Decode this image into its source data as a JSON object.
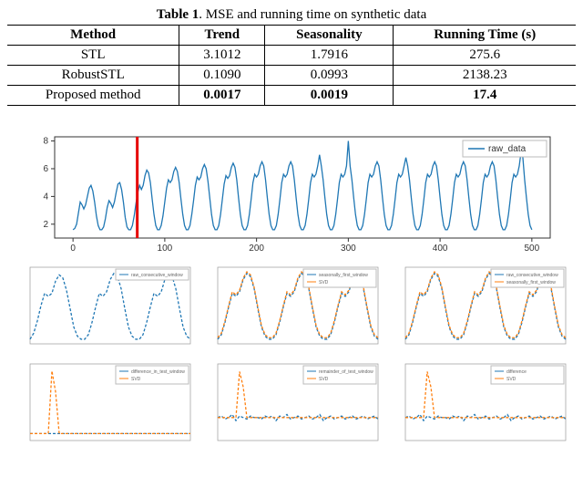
{
  "table": {
    "caption_label": "Table 1",
    "caption_text": ". MSE and running time on synthetic data",
    "columns": [
      "Method",
      "Trend",
      "Seasonality",
      "Running Time (s)"
    ],
    "rows": [
      {
        "cells": [
          "STL",
          "3.1012",
          "1.7916",
          "275.6"
        ],
        "bold": [
          false,
          false,
          false,
          false
        ]
      },
      {
        "cells": [
          "RobustSTL",
          "0.1090",
          "0.0993",
          "2138.23"
        ],
        "bold": [
          false,
          false,
          false,
          false
        ]
      },
      {
        "cells": [
          "Proposed method",
          "0.0017",
          "0.0019",
          "17.4"
        ],
        "bold": [
          false,
          true,
          true,
          true
        ]
      }
    ],
    "col_align": [
      "center",
      "center",
      "center",
      "center"
    ],
    "font_size_pt": 15
  },
  "colors": {
    "series_blue": "#1f77b4",
    "series_orange": "#ff7f0e",
    "vline_red": "#e60000",
    "axis": "#333333",
    "bg": "#ffffff",
    "border": "#bbbbbb"
  },
  "main_chart": {
    "type": "line",
    "legend": "raw_data",
    "xlim": [
      -20,
      520
    ],
    "ylim": [
      1,
      8.3
    ],
    "xticks": [
      0,
      100,
      200,
      300,
      400,
      500
    ],
    "yticks": [
      2,
      4,
      6,
      8
    ],
    "vline_x": 70,
    "vline_color": "#e60000",
    "line_color": "#1f77b4",
    "series": [
      1.6,
      1.7,
      2.0,
      2.8,
      3.6,
      3.4,
      3.1,
      3.4,
      4.0,
      4.6,
      4.8,
      4.4,
      3.6,
      2.6,
      1.9,
      1.6,
      1.6,
      1.8,
      2.4,
      3.2,
      3.7,
      3.5,
      3.2,
      3.6,
      4.3,
      4.9,
      5.0,
      4.5,
      3.6,
      2.5,
      1.8,
      1.6,
      1.6,
      1.9,
      2.6,
      3.5,
      4.3,
      4.8,
      4.5,
      4.8,
      5.5,
      5.9,
      5.7,
      5.0,
      3.8,
      2.7,
      1.9,
      1.6,
      1.6,
      1.9,
      2.6,
      3.6,
      4.6,
      5.2,
      5.0,
      5.2,
      5.8,
      6.1,
      5.8,
      5.0,
      3.8,
      2.7,
      1.9,
      1.6,
      1.6,
      1.9,
      2.7,
      3.7,
      4.8,
      5.4,
      5.2,
      5.4,
      6.0,
      6.3,
      6.0,
      5.1,
      3.9,
      2.7,
      1.9,
      1.6,
      1.6,
      1.9,
      2.7,
      3.8,
      4.9,
      5.5,
      5.3,
      5.5,
      6.1,
      6.4,
      6.1,
      5.2,
      3.9,
      2.7,
      1.9,
      1.6,
      1.6,
      1.9,
      2.7,
      3.8,
      5.0,
      5.6,
      5.4,
      5.6,
      6.2,
      6.5,
      6.2,
      5.2,
      3.9,
      2.7,
      1.9,
      1.6,
      1.6,
      1.9,
      2.7,
      3.8,
      5.0,
      5.6,
      5.4,
      5.6,
      6.2,
      6.5,
      6.2,
      5.2,
      3.9,
      2.7,
      1.9,
      1.6,
      1.6,
      1.9,
      2.7,
      3.8,
      5.0,
      5.6,
      5.4,
      5.6,
      6.2,
      7.0,
      6.2,
      5.2,
      3.9,
      2.7,
      1.9,
      1.6,
      1.6,
      1.9,
      2.7,
      3.8,
      5.0,
      5.6,
      5.4,
      5.6,
      6.2,
      8.0,
      6.2,
      5.2,
      3.9,
      2.7,
      1.9,
      1.6,
      1.6,
      1.9,
      2.7,
      3.8,
      5.0,
      5.6,
      5.4,
      5.6,
      6.2,
      6.5,
      6.2,
      5.2,
      3.9,
      2.7,
      1.9,
      1.6,
      1.6,
      1.9,
      2.7,
      3.8,
      5.0,
      5.6,
      5.4,
      5.6,
      6.2,
      6.8,
      6.2,
      5.2,
      3.9,
      2.7,
      1.9,
      1.6,
      1.6,
      1.9,
      2.7,
      3.8,
      5.0,
      5.6,
      5.4,
      5.6,
      6.2,
      6.5,
      6.2,
      5.2,
      3.9,
      2.7,
      1.9,
      1.6,
      1.6,
      1.9,
      2.7,
      3.8,
      5.0,
      5.6,
      5.4,
      5.6,
      6.2,
      6.5,
      6.2,
      5.2,
      3.9,
      2.7,
      1.9,
      1.6,
      1.6,
      1.9,
      2.7,
      3.8,
      5.0,
      5.6,
      5.4,
      5.6,
      6.2,
      6.5,
      6.2,
      5.2,
      3.9,
      2.7,
      1.9,
      1.6,
      1.6,
      1.9,
      2.7,
      3.8,
      5.0,
      5.6,
      5.4,
      5.6,
      6.2,
      7.2,
      6.8,
      5.2,
      3.9,
      2.7,
      1.9,
      1.6
    ]
  },
  "mini_row1": [
    {
      "type": "line",
      "ylim": [
        1.5,
        6.5
      ],
      "xlim": [
        0,
        80
      ],
      "legend": [
        "raw_consecutive_window"
      ],
      "colors": [
        "#1f77b4"
      ],
      "series": [
        [
          1.8,
          2.2,
          3.0,
          4.0,
          4.8,
          4.6,
          4.8,
          5.6,
          6.0,
          5.8,
          5.0,
          3.8,
          2.6,
          2.0,
          1.8,
          1.8,
          2.1,
          2.9,
          3.9,
          4.8,
          4.6,
          4.9,
          5.7,
          6.1,
          5.9,
          5.1,
          3.8,
          2.6,
          2.0,
          1.8,
          1.8,
          2.1,
          2.9,
          3.9,
          4.8,
          4.6,
          4.9,
          5.7,
          6.1,
          5.9,
          5.1,
          3.8,
          2.6,
          2.0,
          1.8
        ]
      ]
    },
    {
      "type": "line",
      "ylim": [
        1.5,
        6.5
      ],
      "xlim": [
        0,
        80
      ],
      "legend": [
        "seasonally_first_window",
        "SVD"
      ],
      "colors": [
        "#1f77b4",
        "#ff7f0e"
      ],
      "series": [
        [
          1.8,
          2.1,
          2.9,
          3.9,
          4.8,
          4.6,
          4.9,
          5.7,
          6.1,
          5.9,
          5.1,
          3.8,
          2.6,
          2.0,
          1.8,
          1.8,
          2.1,
          2.9,
          3.9,
          4.8,
          4.6,
          4.9,
          5.7,
          6.1,
          5.9,
          5.1,
          3.8,
          2.6,
          2.0,
          1.8,
          1.8,
          2.1,
          2.9,
          3.9,
          4.8,
          4.6,
          4.9,
          5.7,
          6.1,
          5.9,
          5.1,
          3.8,
          2.6,
          2.0,
          1.8
        ],
        [
          1.9,
          2.2,
          3.0,
          4.0,
          4.9,
          4.7,
          5.0,
          5.8,
          6.2,
          6.0,
          5.2,
          3.9,
          2.7,
          2.1,
          1.9,
          1.9,
          2.2,
          3.0,
          4.0,
          4.9,
          4.7,
          5.0,
          5.8,
          6.2,
          6.0,
          5.2,
          3.9,
          2.7,
          2.1,
          1.9,
          1.9,
          2.2,
          3.0,
          4.0,
          4.9,
          4.7,
          5.0,
          5.8,
          6.2,
          6.0,
          5.2,
          3.9,
          2.7,
          2.1,
          1.9
        ]
      ]
    },
    {
      "type": "line",
      "ylim": [
        1.5,
        6.5
      ],
      "xlim": [
        0,
        80
      ],
      "legend": [
        "raw_consecutive_window",
        "seasonally_first_window"
      ],
      "colors": [
        "#1f77b4",
        "#ff7f0e"
      ],
      "series": [
        [
          1.8,
          2.1,
          2.9,
          3.9,
          4.8,
          4.6,
          4.9,
          5.7,
          6.1,
          5.9,
          5.1,
          3.8,
          2.6,
          2.0,
          1.8,
          1.8,
          2.1,
          2.9,
          3.9,
          4.8,
          4.6,
          4.9,
          5.7,
          6.1,
          5.9,
          5.1,
          3.8,
          2.6,
          2.0,
          1.8,
          1.8,
          2.1,
          2.9,
          3.9,
          4.8,
          4.6,
          4.9,
          5.7,
          6.1,
          5.9,
          5.1,
          3.8,
          2.6,
          2.0,
          1.8
        ],
        [
          1.9,
          2.2,
          3.0,
          4.0,
          4.9,
          4.7,
          5.0,
          5.8,
          6.2,
          6.0,
          5.2,
          3.9,
          2.7,
          2.1,
          1.9,
          1.9,
          2.2,
          3.0,
          4.0,
          4.9,
          4.7,
          5.0,
          5.8,
          6.2,
          6.0,
          5.2,
          3.9,
          2.7,
          2.1,
          1.9,
          1.9,
          2.2,
          3.0,
          4.0,
          4.9,
          4.7,
          5.0,
          5.8,
          6.2,
          6.0,
          5.2,
          3.9,
          2.7,
          2.1,
          1.9
        ]
      ]
    }
  ],
  "mini_row2": [
    {
      "type": "line",
      "ylim": [
        -0.5,
        5.0
      ],
      "xlim": [
        0,
        80
      ],
      "legend": [
        "difference_in_test_window",
        "SVD"
      ],
      "colors": [
        "#1f77b4",
        "#ff7f0e"
      ],
      "series": [
        [
          0,
          0,
          0,
          0,
          0,
          0,
          0,
          0,
          0,
          0,
          0,
          0,
          0,
          0,
          0,
          0,
          0,
          0,
          0,
          0,
          0,
          0,
          0,
          0,
          0,
          0,
          0,
          0,
          0,
          0,
          0,
          0,
          0,
          0,
          0,
          0,
          0,
          0,
          0,
          0,
          0,
          0,
          0,
          0,
          0
        ],
        [
          0,
          0,
          0,
          0,
          0,
          0,
          4.5,
          3.0,
          0,
          0,
          0,
          0,
          0,
          0,
          0,
          0,
          0,
          0,
          0,
          0,
          0,
          0,
          0,
          0,
          0,
          0,
          0,
          0,
          0,
          0,
          0,
          0,
          0,
          0,
          0,
          0,
          0,
          0,
          0,
          0,
          0,
          0,
          0,
          0,
          0
        ]
      ]
    },
    {
      "type": "line",
      "ylim": [
        -1.5,
        3.5
      ],
      "xlim": [
        0,
        80
      ],
      "legend": [
        "remainder_of_test_window",
        "SVD"
      ],
      "colors": [
        "#1f77b4",
        "#ff7f0e"
      ],
      "series": [
        [
          0.0,
          0.1,
          -0.1,
          0.0,
          0.2,
          -0.2,
          0.1,
          0.0,
          -0.1,
          0.1,
          0.0,
          0.0,
          -0.1,
          0.1,
          0.0,
          0.1,
          -0.2,
          0.1,
          0.0,
          0.2,
          -0.1,
          0.0,
          0.1,
          -0.1,
          0.0,
          0.1,
          -0.1,
          0.0,
          0.2,
          -0.2,
          0.0,
          0.1,
          -0.1,
          0.0,
          0.1,
          -0.1,
          0.0,
          0.1,
          -0.1,
          0.0,
          0.1,
          -0.1,
          0.0,
          0.1,
          -0.1
        ],
        [
          0,
          0,
          0,
          0,
          0,
          0,
          3.0,
          2.0,
          0,
          0,
          0,
          0,
          0,
          0,
          0,
          0,
          0,
          0,
          0,
          0,
          0,
          0,
          0,
          0,
          0,
          0,
          0,
          0,
          0,
          0,
          0,
          0,
          0,
          0,
          0,
          0,
          0,
          0,
          0,
          0,
          0,
          0,
          0,
          0,
          0
        ]
      ]
    },
    {
      "type": "line",
      "ylim": [
        -1.5,
        3.5
      ],
      "xlim": [
        0,
        80
      ],
      "legend": [
        "difference",
        "SVD"
      ],
      "colors": [
        "#1f77b4",
        "#ff7f0e"
      ],
      "series": [
        [
          0.0,
          0.1,
          -0.1,
          0.0,
          0.2,
          -0.2,
          0.1,
          0.0,
          -0.1,
          0.1,
          0.0,
          0.0,
          -0.1,
          0.1,
          0.0,
          0.1,
          -0.2,
          0.1,
          0.0,
          0.2,
          -0.1,
          0.0,
          0.1,
          -0.1,
          0.0,
          0.1,
          -0.1,
          0.0,
          0.2,
          -0.2,
          0.0,
          0.1,
          -0.1,
          0.0,
          0.1,
          -0.1,
          0.0,
          0.1,
          -0.1,
          0.0,
          0.1,
          -0.1,
          0.0,
          0.1,
          -0.1
        ],
        [
          0,
          0,
          0,
          0,
          0,
          0,
          3.0,
          2.0,
          0,
          0,
          0,
          0,
          0,
          0,
          0,
          0,
          0,
          0,
          0,
          0,
          0,
          0,
          0,
          0,
          0,
          0,
          0,
          0,
          0,
          0,
          0,
          0,
          0,
          0,
          0,
          0,
          0,
          0,
          0,
          0,
          0,
          0,
          0,
          0,
          0
        ]
      ]
    }
  ]
}
